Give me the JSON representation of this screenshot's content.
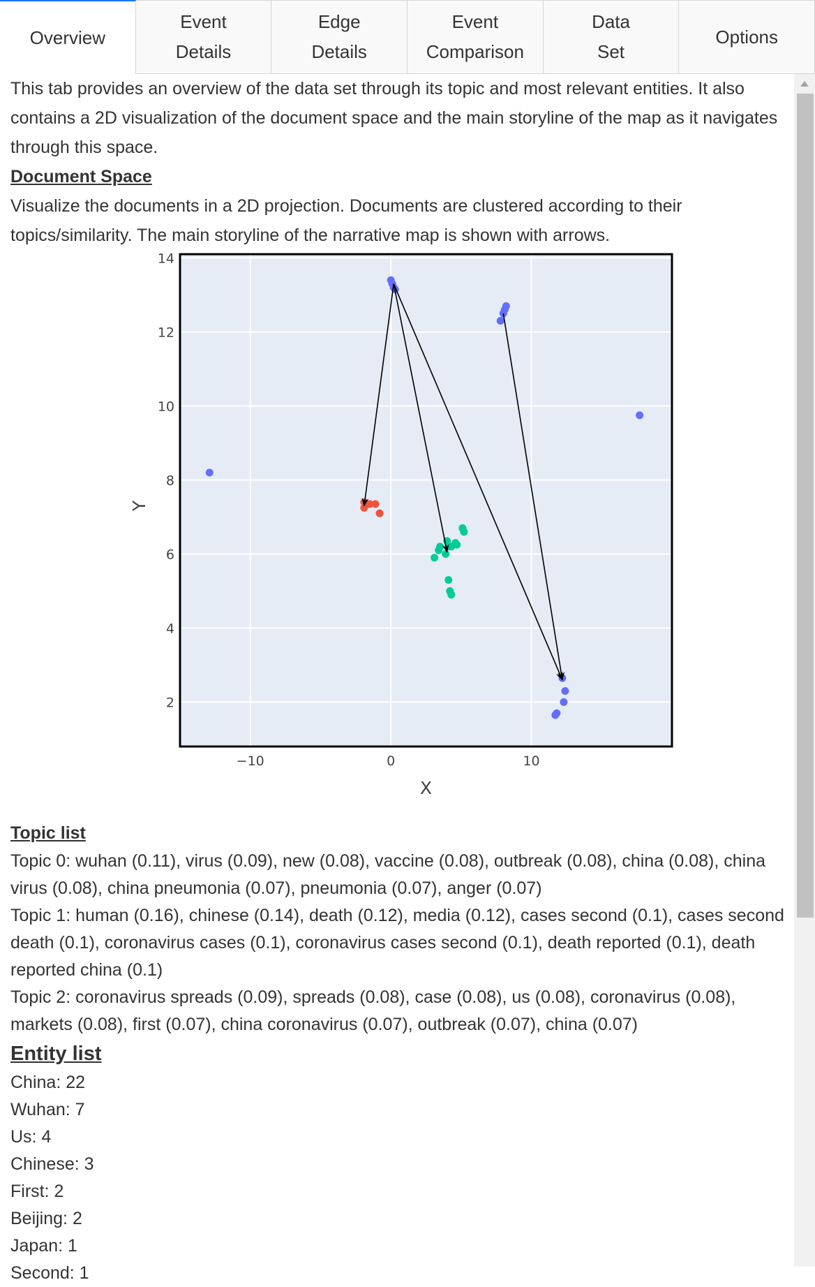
{
  "tabs": [
    {
      "label": "Overview",
      "active": true
    },
    {
      "label": "Event\nDetails",
      "active": false
    },
    {
      "label": "Edge\nDetails",
      "active": false
    },
    {
      "label": "Event\nComparison",
      "active": false
    },
    {
      "label": "Data\nSet",
      "active": false
    },
    {
      "label": "Options",
      "active": false
    }
  ],
  "overview": {
    "intro": "This tab provides an overview of the data set through its topic and most relevant entities. It also contains a 2D visualization of the document space and the main storyline of the map as it navigates through this space.",
    "document_space": {
      "title": "Document Space",
      "description": "Visualize the documents in a 2D projection. Documents are clustered according to their topics/similarity. The main storyline of the narrative map is shown with arrows."
    },
    "topic_list": {
      "title": "Topic list",
      "topics": [
        "Topic 0: wuhan (0.11), virus (0.09), new (0.08), vaccine (0.08), outbreak (0.08), china (0.08), china virus (0.08), china pneumonia (0.07), pneumonia (0.07), anger (0.07)",
        "Topic 1: human (0.16), chinese (0.14), death (0.12), media (0.12), cases second (0.1), cases second death (0.1), coronavirus cases (0.1), coronavirus cases second (0.1), death reported (0.1), death reported china (0.1)",
        "Topic 2: coronavirus spreads (0.09), spreads (0.08), case (0.08), us (0.08), coronavirus (0.08), markets (0.08), first (0.07), china coronavirus (0.07), outbreak (0.07), china (0.07)"
      ]
    },
    "entity_list": {
      "title": "Entity list",
      "entities": [
        "China: 22",
        "Wuhan: 7",
        "Us: 4",
        "Chinese: 3",
        "First: 2",
        "Beijing: 2",
        "Japan: 1",
        "Second: 1"
      ]
    }
  },
  "colors": {
    "accent": "#1975fa",
    "plot_bg": "#e5ecf6",
    "topic_blue": "#636efa",
    "topic_red": "#ef553b",
    "topic_green": "#00cc96"
  },
  "chart_data": {
    "type": "scatter",
    "xlabel": "X",
    "ylabel": "Y",
    "xlim": [
      -15,
      20
    ],
    "ylim": [
      0.8,
      14.1
    ],
    "xticks": [
      -10,
      0,
      10
    ],
    "yticks": [
      2,
      4,
      6,
      8,
      10,
      12,
      14
    ],
    "xtick_labels": [
      "−10",
      "0",
      "10"
    ],
    "ytick_labels": [
      "2",
      "4",
      "6",
      "8",
      "10",
      "12",
      "14"
    ],
    "grid": true,
    "series": [
      {
        "color": "#636efa",
        "points": [
          [
            -12.9,
            8.2
          ],
          [
            0.0,
            13.4
          ],
          [
            0.1,
            13.3
          ],
          [
            0.2,
            13.2
          ],
          [
            0.3,
            13.15
          ],
          [
            7.8,
            12.3
          ],
          [
            8.0,
            12.5
          ],
          [
            8.1,
            12.6
          ],
          [
            8.2,
            12.7
          ],
          [
            17.7,
            9.75
          ],
          [
            12.2,
            2.65
          ],
          [
            12.4,
            2.3
          ],
          [
            12.3,
            2.0
          ],
          [
            11.8,
            1.7
          ],
          [
            11.7,
            1.65
          ]
        ]
      },
      {
        "color": "#ef553b",
        "points": [
          [
            -1.9,
            7.4
          ],
          [
            -1.9,
            7.25
          ],
          [
            -1.5,
            7.35
          ],
          [
            -1.1,
            7.35
          ],
          [
            -0.8,
            7.1
          ]
        ]
      },
      {
        "color": "#00cc96",
        "points": [
          [
            3.1,
            5.9
          ],
          [
            3.4,
            6.1
          ],
          [
            3.5,
            6.2
          ],
          [
            3.9,
            6.0
          ],
          [
            4.0,
            6.35
          ],
          [
            4.1,
            6.2
          ],
          [
            4.3,
            6.2
          ],
          [
            4.7,
            6.25
          ],
          [
            4.6,
            6.3
          ],
          [
            5.1,
            6.7
          ],
          [
            5.2,
            6.6
          ],
          [
            4.1,
            5.3
          ],
          [
            4.2,
            5.0
          ],
          [
            4.3,
            4.9
          ]
        ]
      }
    ],
    "storyline_arrows": [
      {
        "from": [
          0.2,
          13.3
        ],
        "to": [
          -1.9,
          7.3
        ]
      },
      {
        "from": [
          0.2,
          13.3
        ],
        "to": [
          4.0,
          6.05
        ]
      },
      {
        "from": [
          0.2,
          13.3
        ],
        "to": [
          12.2,
          2.6
        ]
      },
      {
        "from": [
          8.0,
          12.5
        ],
        "to": [
          12.2,
          2.6
        ]
      }
    ]
  }
}
